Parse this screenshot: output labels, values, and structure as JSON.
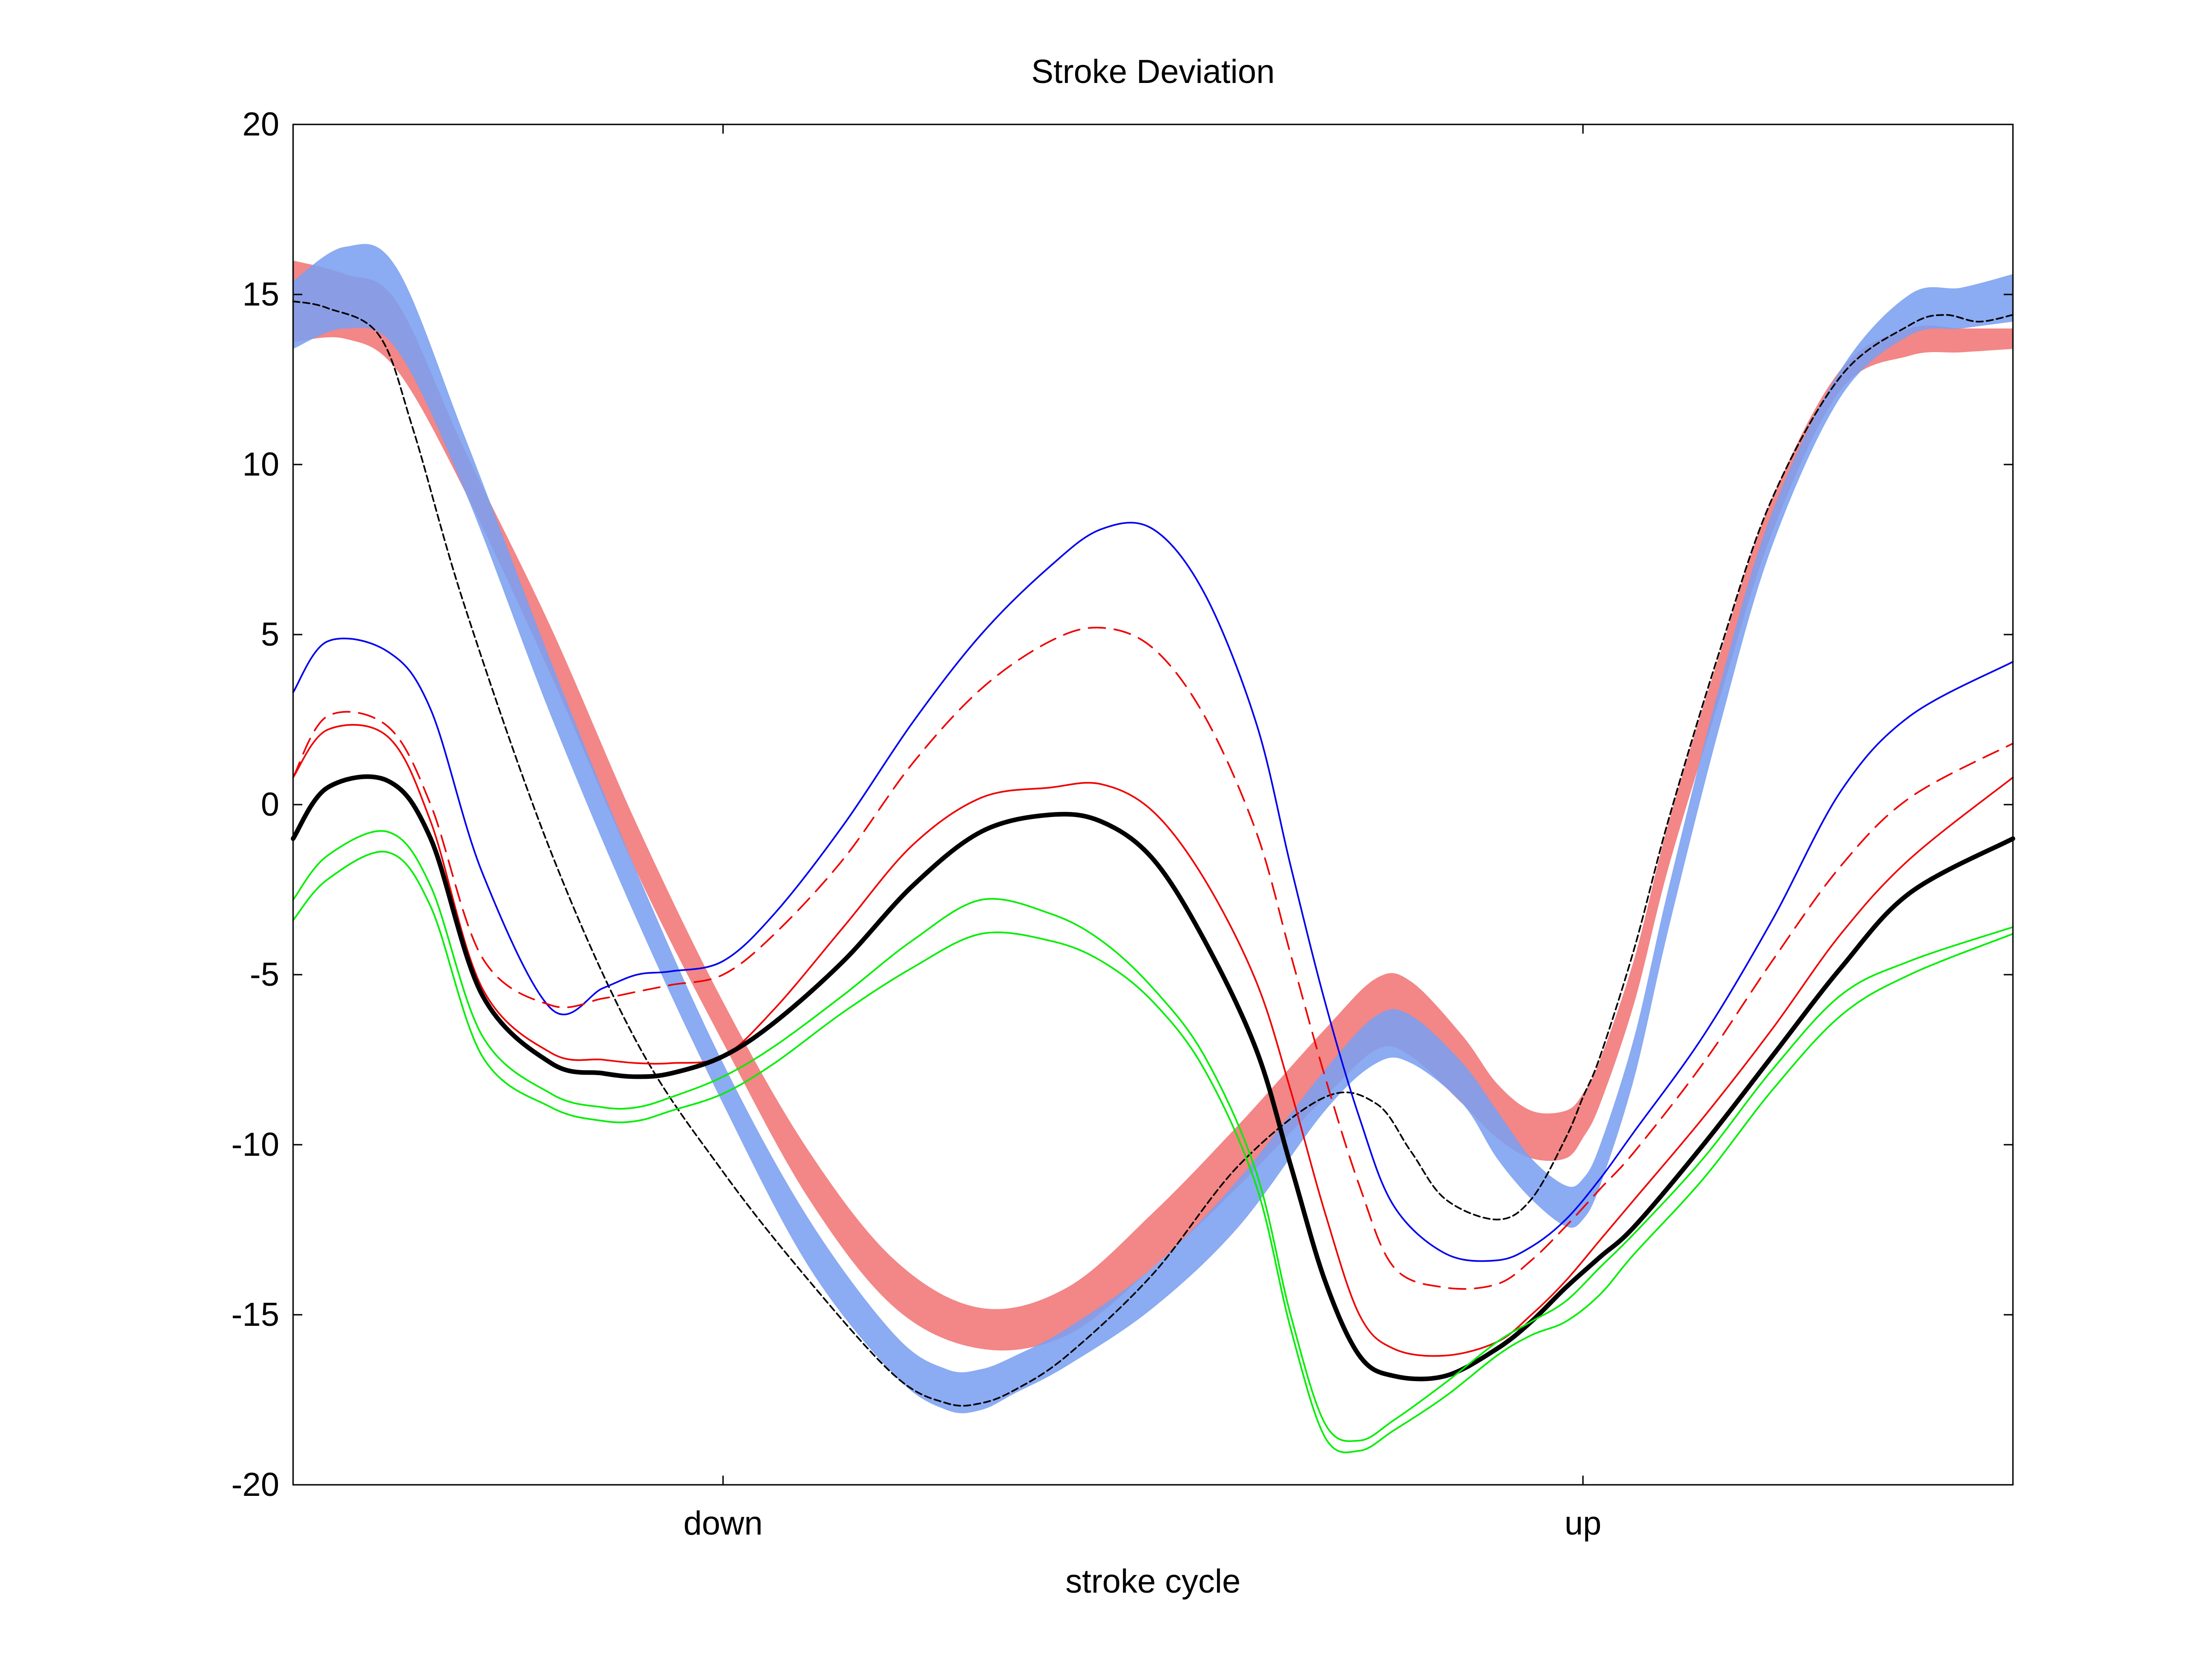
{
  "chart_data": {
    "type": "line",
    "title": "Stroke Deviation",
    "xlabel": "stroke cycle",
    "ylabel": "",
    "xlim": [
      0,
      1
    ],
    "ylim": [
      -20,
      20
    ],
    "x_ticks": [
      {
        "x": 0.25,
        "label": "down"
      },
      {
        "x": 0.75,
        "label": "up"
      }
    ],
    "y_ticks": [
      {
        "y": 20,
        "label": "20"
      },
      {
        "y": 15,
        "label": "15"
      },
      {
        "y": 10,
        "label": "10"
      },
      {
        "y": 5,
        "label": "5"
      },
      {
        "y": 0,
        "label": "0"
      },
      {
        "y": -5,
        "label": "-5"
      },
      {
        "y": -10,
        "label": "-10"
      },
      {
        "y": -15,
        "label": "-15"
      },
      {
        "y": -20,
        "label": "-20"
      }
    ],
    "grid": false,
    "bands": [
      {
        "color": "#f28080",
        "opacity": 0.95,
        "x": [
          0,
          0.03,
          0.06,
          0.1,
          0.15,
          0.2,
          0.25,
          0.3,
          0.35,
          0.4,
          0.45,
          0.5,
          0.55,
          0.6,
          0.63,
          0.65,
          0.68,
          0.7,
          0.72,
          0.74,
          0.75,
          0.76,
          0.78,
          0.8,
          0.83,
          0.86,
          0.9,
          0.94,
          0.97,
          1.0
        ],
        "upper": [
          16.0,
          15.6,
          14.8,
          10.4,
          5.2,
          -0.6,
          -5.8,
          -10.2,
          -13.4,
          -14.8,
          -14.2,
          -12.0,
          -9.4,
          -6.6,
          -5.1,
          -5.2,
          -6.8,
          -8.2,
          -9.0,
          -9.0,
          -8.5,
          -7.5,
          -4.5,
          -0.5,
          4.5,
          9.0,
          12.8,
          14.0,
          14.0,
          14.0
        ],
        "lower": [
          13.6,
          13.7,
          12.8,
          9.2,
          3.8,
          -2.0,
          -7.0,
          -11.6,
          -14.8,
          -16.0,
          -15.6,
          -13.6,
          -11.2,
          -8.6,
          -7.2,
          -7.4,
          -8.8,
          -9.8,
          -10.4,
          -10.4,
          -9.8,
          -8.8,
          -5.8,
          -1.8,
          3.2,
          8.0,
          12.2,
          13.2,
          13.3,
          13.4
        ]
      },
      {
        "color": "#7b9ff0",
        "opacity": 0.88,
        "x": [
          0,
          0.03,
          0.06,
          0.1,
          0.15,
          0.2,
          0.25,
          0.3,
          0.35,
          0.38,
          0.4,
          0.42,
          0.45,
          0.5,
          0.55,
          0.6,
          0.63,
          0.65,
          0.68,
          0.7,
          0.72,
          0.74,
          0.75,
          0.76,
          0.78,
          0.8,
          0.83,
          0.86,
          0.9,
          0.94,
          0.97,
          1.0
        ],
        "upper": [
          15.4,
          16.4,
          15.8,
          10.8,
          4.2,
          -2.0,
          -7.6,
          -12.2,
          -15.6,
          -16.6,
          -16.6,
          -16.2,
          -15.4,
          -13.6,
          -11.0,
          -7.8,
          -6.2,
          -6.2,
          -7.6,
          -9.0,
          -10.4,
          -11.2,
          -11.0,
          -10.0,
          -6.8,
          -2.4,
          3.6,
          8.6,
          12.8,
          15.0,
          15.2,
          15.6
        ],
        "lower": [
          13.4,
          14.0,
          13.4,
          9.2,
          2.6,
          -3.4,
          -8.8,
          -13.6,
          -16.8,
          -17.8,
          -17.8,
          -17.3,
          -16.5,
          -14.8,
          -12.4,
          -9.0,
          -7.6,
          -7.6,
          -8.8,
          -10.4,
          -11.6,
          -12.4,
          -12.2,
          -11.2,
          -8.0,
          -3.6,
          2.4,
          7.6,
          12.0,
          13.8,
          14.0,
          14.2
        ]
      }
    ],
    "series": [
      {
        "color": "#000000",
        "width": 3.6,
        "dash": "14,8",
        "x": [
          0,
          0.02,
          0.05,
          0.07,
          0.1,
          0.15,
          0.2,
          0.25,
          0.3,
          0.35,
          0.38,
          0.4,
          0.42,
          0.45,
          0.5,
          0.55,
          0.6,
          0.63,
          0.65,
          0.67,
          0.7,
          0.72,
          0.74,
          0.75,
          0.76,
          0.78,
          0.8,
          0.83,
          0.86,
          0.9,
          0.94,
          0.96,
          0.98,
          1.0
        ],
        "y": [
          14.8,
          14.6,
          13.8,
          11.0,
          5.8,
          -1.4,
          -7.0,
          -10.8,
          -14.0,
          -16.8,
          -17.6,
          -17.6,
          -17.2,
          -16.2,
          -13.8,
          -10.6,
          -8.6,
          -8.8,
          -10.2,
          -11.6,
          -12.2,
          -11.6,
          -9.8,
          -8.6,
          -7.4,
          -4.2,
          -0.4,
          4.6,
          9.0,
          12.6,
          14.1,
          14.4,
          14.2,
          14.4
        ]
      },
      {
        "color": "#0000ee",
        "width": 3.6,
        "x": [
          0,
          0.02,
          0.055,
          0.08,
          0.11,
          0.15,
          0.18,
          0.2,
          0.22,
          0.25,
          0.28,
          0.32,
          0.36,
          0.4,
          0.44,
          0.47,
          0.5,
          0.53,
          0.56,
          0.58,
          0.6,
          0.62,
          0.64,
          0.67,
          0.7,
          0.72,
          0.74,
          0.76,
          0.78,
          0.82,
          0.86,
          0.9,
          0.94,
          1.0
        ],
        "y": [
          3.3,
          4.8,
          4.5,
          2.8,
          -2.0,
          -6.0,
          -5.4,
          -5.0,
          -4.9,
          -4.6,
          -3.2,
          -0.6,
          2.4,
          5.0,
          7.0,
          8.1,
          8.1,
          6.2,
          2.4,
          -1.8,
          -5.8,
          -9.2,
          -11.8,
          -13.2,
          -13.4,
          -13.0,
          -12.2,
          -11.0,
          -9.6,
          -6.8,
          -3.4,
          0.4,
          2.6,
          4.2
        ]
      },
      {
        "color": "#ee0000",
        "width": 3.6,
        "dash": "36,20",
        "x": [
          0,
          0.02,
          0.055,
          0.08,
          0.11,
          0.15,
          0.18,
          0.2,
          0.22,
          0.25,
          0.28,
          0.32,
          0.36,
          0.4,
          0.44,
          0.47,
          0.5,
          0.53,
          0.56,
          0.58,
          0.6,
          0.62,
          0.64,
          0.67,
          0.7,
          0.72,
          0.74,
          0.76,
          0.78,
          0.82,
          0.86,
          0.9,
          0.94,
          1.0
        ],
        "y": [
          0.8,
          2.6,
          2.3,
          0.0,
          -4.5,
          -5.9,
          -5.7,
          -5.5,
          -5.3,
          -5.0,
          -3.8,
          -1.6,
          1.2,
          3.4,
          4.8,
          5.2,
          4.6,
          2.6,
          -0.8,
          -4.4,
          -8.0,
          -11.2,
          -13.6,
          -14.2,
          -14.1,
          -13.4,
          -12.4,
          -11.3,
          -10.2,
          -7.6,
          -4.6,
          -1.8,
          0.2,
          1.8
        ]
      },
      {
        "color": "#ee0000",
        "width": 3.6,
        "x": [
          0,
          0.02,
          0.055,
          0.08,
          0.11,
          0.15,
          0.18,
          0.2,
          0.22,
          0.25,
          0.28,
          0.32,
          0.36,
          0.4,
          0.44,
          0.47,
          0.5,
          0.53,
          0.56,
          0.58,
          0.6,
          0.62,
          0.64,
          0.67,
          0.7,
          0.72,
          0.74,
          0.76,
          0.78,
          0.82,
          0.86,
          0.9,
          0.94,
          1.0
        ],
        "y": [
          0.8,
          2.2,
          2.0,
          -0.5,
          -5.4,
          -7.3,
          -7.5,
          -7.6,
          -7.6,
          -7.4,
          -6.0,
          -3.6,
          -1.2,
          0.2,
          0.5,
          0.6,
          -0.2,
          -2.2,
          -5.2,
          -8.4,
          -12.0,
          -15.0,
          -16.0,
          -16.2,
          -15.8,
          -15.0,
          -14.0,
          -12.8,
          -11.6,
          -9.2,
          -6.6,
          -3.8,
          -1.6,
          0.8
        ]
      },
      {
        "color": "#000000",
        "width": 10,
        "x": [
          0,
          0.02,
          0.055,
          0.08,
          0.11,
          0.15,
          0.18,
          0.2,
          0.22,
          0.25,
          0.28,
          0.32,
          0.36,
          0.4,
          0.44,
          0.47,
          0.5,
          0.53,
          0.56,
          0.58,
          0.6,
          0.62,
          0.64,
          0.67,
          0.7,
          0.72,
          0.74,
          0.76,
          0.78,
          0.82,
          0.86,
          0.9,
          0.94,
          1.0
        ],
        "y": [
          -1.0,
          0.5,
          0.7,
          -1.0,
          -5.6,
          -7.6,
          -7.9,
          -8.0,
          -7.9,
          -7.4,
          -6.4,
          -4.6,
          -2.4,
          -0.8,
          -0.3,
          -0.5,
          -1.6,
          -4.0,
          -7.2,
          -10.6,
          -14.0,
          -16.2,
          -16.8,
          -16.8,
          -16.0,
          -15.2,
          -14.2,
          -13.3,
          -12.4,
          -10.0,
          -7.4,
          -4.8,
          -2.6,
          -1.0
        ]
      },
      {
        "color": "#00ee00",
        "width": 3.6,
        "x": [
          0,
          0.02,
          0.055,
          0.08,
          0.11,
          0.15,
          0.18,
          0.2,
          0.22,
          0.25,
          0.28,
          0.32,
          0.36,
          0.4,
          0.44,
          0.47,
          0.5,
          0.53,
          0.56,
          0.58,
          0.6,
          0.62,
          0.64,
          0.67,
          0.7,
          0.72,
          0.74,
          0.76,
          0.78,
          0.82,
          0.86,
          0.9,
          0.94,
          1.0
        ],
        "y": [
          -2.8,
          -1.5,
          -0.8,
          -2.4,
          -6.8,
          -8.5,
          -8.9,
          -8.9,
          -8.6,
          -8.0,
          -7.1,
          -5.6,
          -4.0,
          -2.8,
          -3.2,
          -4.0,
          -5.4,
          -7.4,
          -10.8,
          -15.0,
          -18.2,
          -18.7,
          -18.1,
          -17.0,
          -15.8,
          -15.2,
          -14.6,
          -13.6,
          -12.6,
          -10.4,
          -7.8,
          -5.6,
          -4.6,
          -3.6
        ]
      },
      {
        "color": "#00ee00",
        "width": 3.6,
        "x": [
          0,
          0.02,
          0.055,
          0.08,
          0.11,
          0.15,
          0.18,
          0.2,
          0.22,
          0.25,
          0.28,
          0.32,
          0.36,
          0.4,
          0.44,
          0.47,
          0.5,
          0.53,
          0.56,
          0.58,
          0.6,
          0.62,
          0.64,
          0.67,
          0.7,
          0.72,
          0.74,
          0.76,
          0.78,
          0.82,
          0.86,
          0.9,
          0.94,
          1.0
        ],
        "y": [
          -3.4,
          -2.2,
          -1.4,
          -3.0,
          -7.4,
          -8.9,
          -9.3,
          -9.3,
          -9.0,
          -8.5,
          -7.6,
          -6.1,
          -4.8,
          -3.8,
          -4.0,
          -4.6,
          -5.8,
          -7.8,
          -11.2,
          -15.4,
          -18.6,
          -19.0,
          -18.4,
          -17.4,
          -16.2,
          -15.6,
          -15.2,
          -14.4,
          -13.2,
          -11.0,
          -8.4,
          -6.2,
          -5.0,
          -3.8
        ]
      }
    ]
  }
}
